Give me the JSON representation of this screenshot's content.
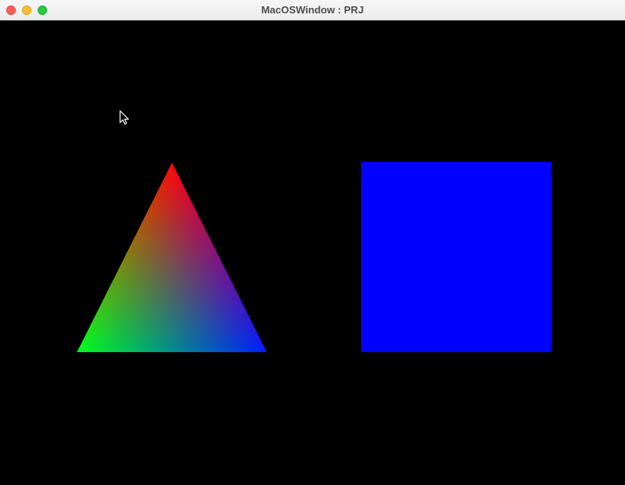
{
  "window": {
    "title": "MacOSWindow : PRJ",
    "buttons": [
      "close-button",
      "minimize-button",
      "zoom-button"
    ]
  },
  "canvas": {
    "background": "#000000",
    "triangle": {
      "vertex_colors": {
        "top": "#ff0000",
        "bottom_left": "#00ff00",
        "bottom_right": "#0000ff"
      }
    },
    "square": {
      "color": "#0000ff"
    }
  },
  "cursor": {
    "icon": "arrow-pointer-icon"
  }
}
